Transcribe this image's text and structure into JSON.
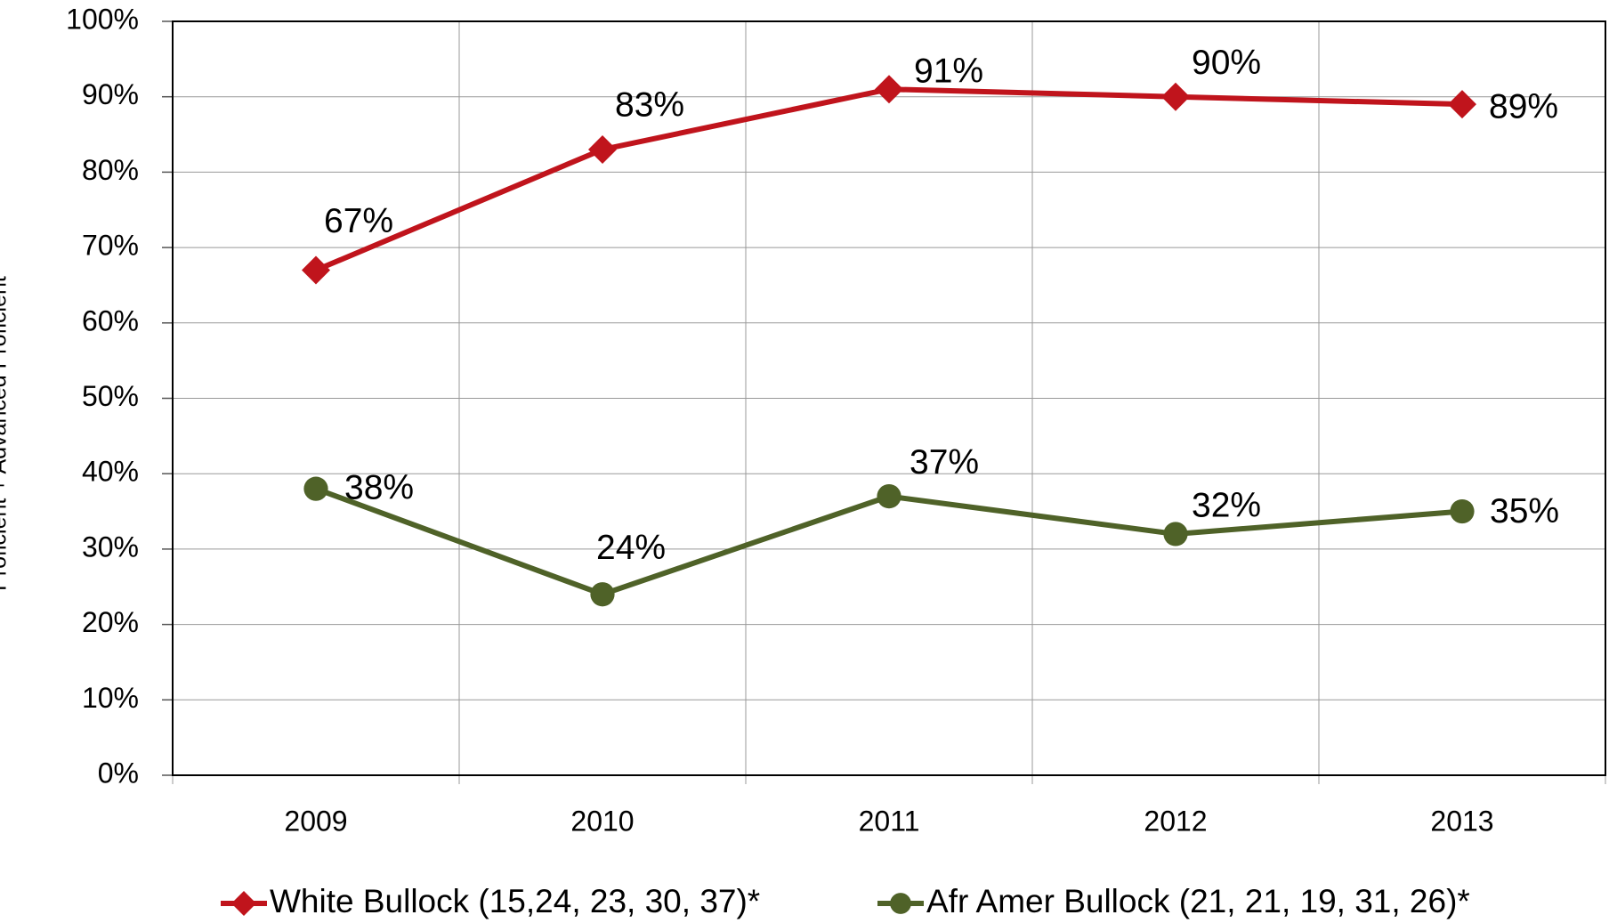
{
  "chart_data": {
    "type": "line",
    "y_label": "Proficient + Advanced Proficient",
    "categories": [
      "2009",
      "2010",
      "2011",
      "2012",
      "2013"
    ],
    "series": [
      {
        "name": "White Bullock (15,24, 23, 30, 37)*",
        "color": "#c0141c",
        "marker": "diamond",
        "values": [
          67,
          83,
          91,
          90,
          89
        ],
        "value_labels": [
          "67%",
          "83%",
          "91%",
          "90%",
          "89%"
        ]
      },
      {
        "name": "Afr Amer Bullock (21, 21, 19, 31, 26)*",
        "color": "#4f6228",
        "marker": "circle",
        "values": [
          38,
          24,
          37,
          32,
          35
        ],
        "value_labels": [
          "38%",
          "24%",
          "37%",
          "32%",
          "35%"
        ]
      }
    ],
    "ylim": [
      0,
      100
    ],
    "yticks": [
      {
        "value": 0,
        "label": "0%"
      },
      {
        "value": 10,
        "label": "10%"
      },
      {
        "value": 20,
        "label": "20%"
      },
      {
        "value": 30,
        "label": "30%"
      },
      {
        "value": 40,
        "label": "40%"
      },
      {
        "value": 50,
        "label": "50%"
      },
      {
        "value": 60,
        "label": "60%"
      },
      {
        "value": 70,
        "label": "70%"
      },
      {
        "value": 80,
        "label": "80%"
      },
      {
        "value": 90,
        "label": "90%"
      },
      {
        "value": 100,
        "label": "100%"
      }
    ],
    "grid": true,
    "legend": "bottom"
  }
}
